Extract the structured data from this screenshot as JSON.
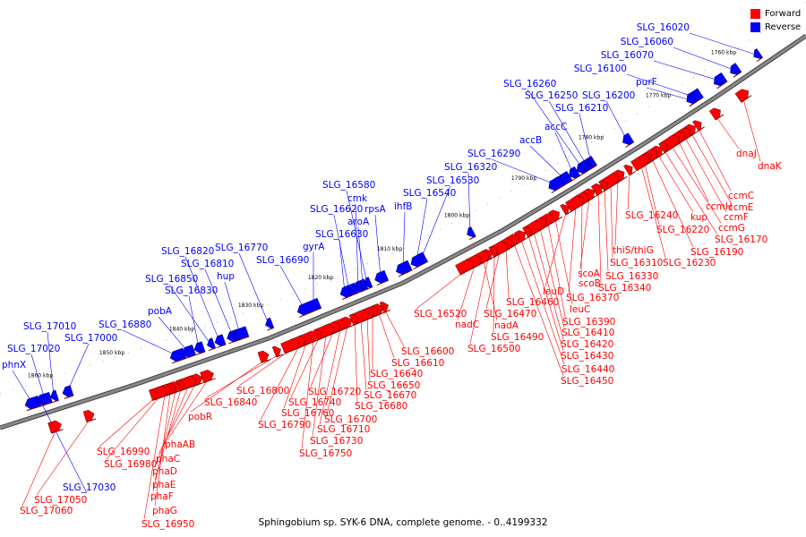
{
  "caption": "Sphingobium sp. SYK-6 DNA, complete genome. - 0..4199332",
  "legend": {
    "forward": {
      "label": "Forward",
      "color": "#ff0000"
    },
    "reverse": {
      "label": "Reverse",
      "color": "#0000ff"
    }
  },
  "colors": {
    "forward": "#ff0000",
    "reverse": "#0000ff",
    "backbone": "#888888"
  },
  "ticks": [
    "1760 kbp",
    "1770 kbp",
    "1780 kbp",
    "1790 kbp",
    "1800 kbp",
    "1810 kbp",
    "1820 kbp",
    "1830 kbp",
    "1840 kbp",
    "1850 kbp",
    "1860 kbp"
  ],
  "reverse_labels": [
    "SLG_16020",
    "SLG_16060",
    "SLG_16070",
    "SLG_16100",
    "purF",
    "SLG_16200",
    "SLG_16260",
    "SLG_16250",
    "SLG_16210",
    "accC",
    "accB",
    "SLG_16290",
    "SLG_16320",
    "SLG_16530",
    "SLG_16540",
    "ihfB",
    "SLG_16580",
    "cmk",
    "rpsA",
    "SLG_16620",
    "aroA",
    "SLG_16630",
    "gyrA",
    "SLG_16690",
    "SLG_16770",
    "SLG_16820",
    "SLG_16810",
    "hup",
    "SLG_16850",
    "SLG_16830",
    "pobA",
    "SLG_16880",
    "SLG_17010",
    "SLG_17000",
    "SLG_17020",
    "phnX",
    "SLG_17030"
  ],
  "forward_labels": [
    "ccmC",
    "ccmE",
    "ccmF",
    "ccmH",
    "ccmG",
    "SLG_16170",
    "kup",
    "SLG_16190",
    "SLG_16220",
    "SLG_16230",
    "SLG_16240",
    "dnaJ",
    "dnaK",
    "thiS/thiG",
    "SLG_16310",
    "SLG_16330",
    "SLG_16340",
    "scoA",
    "scoB",
    "SLG_16370",
    "leuD",
    "leuC",
    "SLG_16390",
    "SLG_16410",
    "SLG_16420",
    "SLG_16430",
    "SLG_16440",
    "SLG_16450",
    "SLG_16460",
    "SLG_16470",
    "SLG_16490",
    "SLG_16500",
    "nadA",
    "nadC",
    "SLG_16520",
    "SLG_16600",
    "SLG_16610",
    "SLG_16640",
    "SLG_16650",
    "SLG_16670",
    "SLG_16680",
    "SLG_16700",
    "SLG_16710",
    "SLG_16720",
    "SLG_16730",
    "SLG_16740",
    "SLG_16750",
    "SLG_16760",
    "SLG_16790",
    "SLG_16800",
    "SLG_16840",
    "pobR",
    "phaAB",
    "phaC",
    "phaD",
    "phaE",
    "phaF",
    "phaG",
    "SLG_16950",
    "SLG_16980",
    "SLG_16990",
    "SLG_17050",
    "SLG_17060"
  ]
}
